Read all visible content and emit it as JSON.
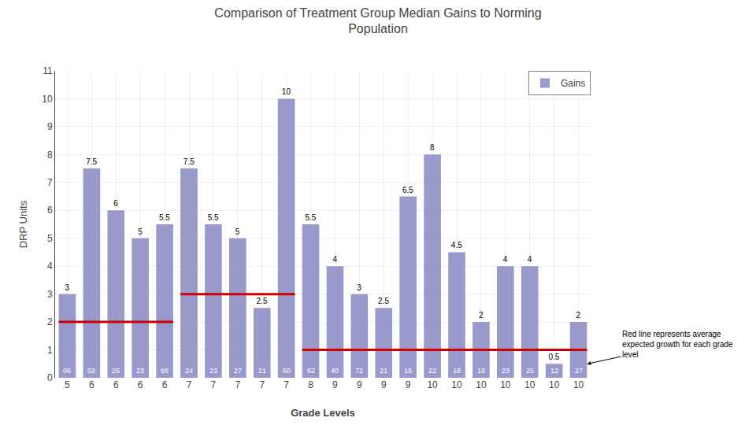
{
  "chart_data": {
    "type": "bar",
    "title": "Comparison of Treatment Group Median Gains to Norming\nPopulation",
    "xlabel": "Grade Levels",
    "ylabel": "DRP Units",
    "categories": [
      "5",
      "6",
      "6",
      "6",
      "6",
      "7",
      "7",
      "7",
      "7",
      "7",
      "8",
      "9",
      "9",
      "9",
      "9",
      "10",
      "10",
      "10",
      "10",
      "10",
      "10",
      "10"
    ],
    "series": [
      {
        "name": "Gains",
        "color": "#9999cc",
        "values": [
          3,
          7.5,
          6,
          5,
          5.5,
          7.5,
          5.5,
          5,
          2.5,
          10,
          5.5,
          4,
          3,
          2.5,
          6.5,
          8,
          4.5,
          2,
          4,
          4,
          0.5,
          2
        ]
      }
    ],
    "inner_labels": [
      "06",
      "02",
      "25",
      "23",
      "66",
      "24",
      "23",
      "27",
      "21",
      "60",
      "62",
      "40",
      "72",
      "21",
      "16",
      "22",
      "18",
      "18",
      "23",
      "25",
      "12",
      "27"
    ],
    "reference_lines": {
      "color": "#cc0000",
      "segments": [
        {
          "start": 0,
          "end": 4,
          "value": 2
        },
        {
          "start": 5,
          "end": 9,
          "value": 3
        },
        {
          "start": 10,
          "end": 21,
          "value": 1
        }
      ]
    },
    "annotation": "Red line represents average\nexpected growth for each grade\nlevel",
    "ylim": [
      0,
      11
    ],
    "yticks": [
      0,
      1,
      2,
      3,
      4,
      5,
      6,
      7,
      8,
      9,
      10,
      11
    ],
    "grid": true,
    "legend": "upper right",
    "data_labels": true
  }
}
